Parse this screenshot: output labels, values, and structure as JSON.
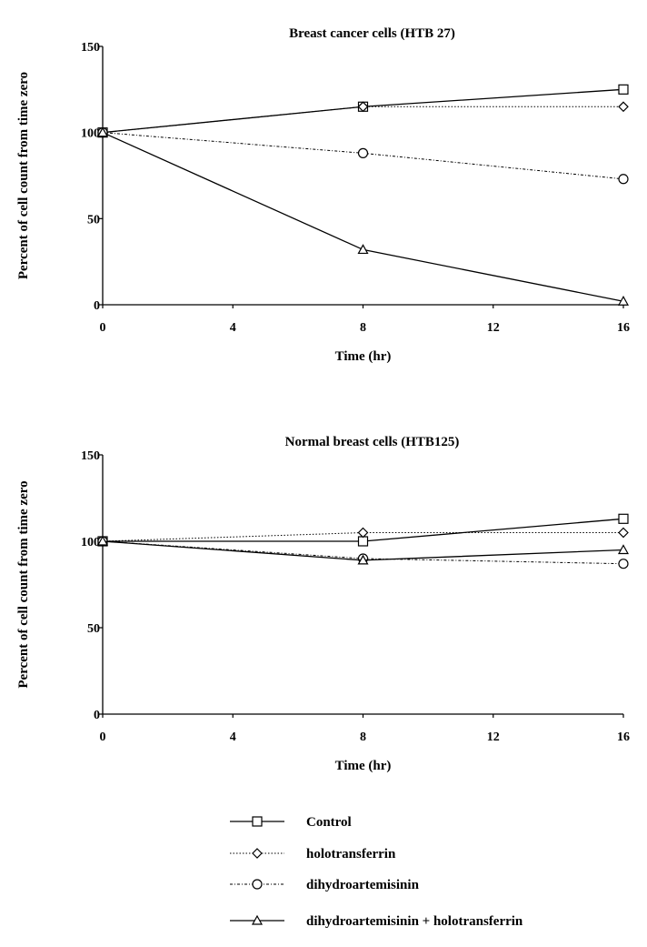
{
  "chart_data": [
    {
      "type": "line",
      "title": "Breast cancer cells (HTB 27)",
      "xlabel": "Time (hr)",
      "ylabel": "Percent of cell count from time zero",
      "xlim": [
        0,
        16
      ],
      "ylim": [
        0,
        150
      ],
      "xticks": [
        "0",
        "4",
        "8",
        "12",
        "16"
      ],
      "yticks": [
        "0",
        "50",
        "100",
        "150"
      ],
      "x": [
        0,
        8,
        16
      ],
      "series": [
        {
          "name": "Control",
          "values": [
            100,
            115,
            125
          ]
        },
        {
          "name": "holotransferrin",
          "values": [
            100,
            115,
            115
          ]
        },
        {
          "name": "dihydroartemisinin",
          "values": [
            100,
            88,
            73
          ]
        },
        {
          "name": "dihydroartemisinin + holotransferrin",
          "values": [
            100,
            32,
            2
          ]
        }
      ]
    },
    {
      "type": "line",
      "title": "Normal breast cells (HTB125)",
      "xlabel": "Time (hr)",
      "ylabel": "Percent  of cell count from time zero",
      "xlim": [
        0,
        16
      ],
      "ylim": [
        0,
        150
      ],
      "xticks": [
        "0",
        "4",
        "8",
        "12",
        "16"
      ],
      "yticks": [
        "0",
        "50",
        "100",
        "150"
      ],
      "x": [
        0,
        8,
        16
      ],
      "series": [
        {
          "name": "Control",
          "values": [
            100,
            100,
            113
          ]
        },
        {
          "name": "holotransferrin",
          "values": [
            100,
            105,
            105
          ]
        },
        {
          "name": "dihydroartemisinin",
          "values": [
            100,
            90,
            87
          ]
        },
        {
          "name": "dihydroartemisinin + holotransferrin",
          "values": [
            100,
            89,
            95
          ]
        }
      ]
    }
  ],
  "legend": {
    "entries": [
      {
        "label": "Control",
        "marker": "square",
        "line": "solid"
      },
      {
        "label": "holotransferrin",
        "marker": "diamond",
        "line": "dotted"
      },
      {
        "label": "dihydroartemisinin",
        "marker": "circle",
        "line": "dash-dot"
      },
      {
        "label": "dihydroartemisinin + holotransferrin",
        "marker": "triangle",
        "line": "dashed"
      }
    ]
  }
}
